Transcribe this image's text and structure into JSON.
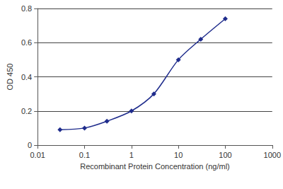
{
  "chart_data": {
    "type": "line",
    "x_label": "Recombinant Protein Concentration (ng/ml)",
    "y_label": "OD 450",
    "x": [
      0.03,
      0.1,
      0.3,
      1,
      3,
      10,
      30,
      100
    ],
    "values": [
      0.09,
      0.1,
      0.14,
      0.2,
      0.3,
      0.5,
      0.62,
      0.74
    ],
    "color": "#1f2c8c",
    "marker": "diamond",
    "line_style": "solid",
    "log": "x",
    "xlim": [
      0.01,
      1000
    ],
    "xticks": [
      0.01,
      0.1,
      1,
      10,
      100,
      1000
    ],
    "ylim": [
      0,
      0.8
    ],
    "yticks": [
      0,
      0.2,
      0.4,
      0.6,
      0.8
    ],
    "grid": true
  }
}
